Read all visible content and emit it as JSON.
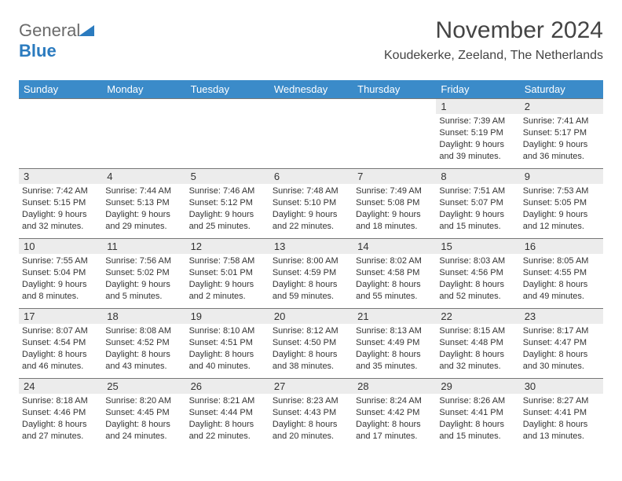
{
  "logo": {
    "text1": "General",
    "text2": "Blue",
    "accent_color": "#2b7bbf"
  },
  "header": {
    "title": "November 2024",
    "location": "Koudekerke, Zeeland, The Netherlands"
  },
  "colors": {
    "header_bg": "#3b8bc9",
    "daynum_bg": "#ececec",
    "grid_border": "#777777"
  },
  "days_of_week": [
    "Sunday",
    "Monday",
    "Tuesday",
    "Wednesday",
    "Thursday",
    "Friday",
    "Saturday"
  ],
  "weeks": [
    [
      {
        "n": "",
        "sr": "",
        "ss": "",
        "dl": ""
      },
      {
        "n": "",
        "sr": "",
        "ss": "",
        "dl": ""
      },
      {
        "n": "",
        "sr": "",
        "ss": "",
        "dl": ""
      },
      {
        "n": "",
        "sr": "",
        "ss": "",
        "dl": ""
      },
      {
        "n": "",
        "sr": "",
        "ss": "",
        "dl": ""
      },
      {
        "n": "1",
        "sr": "Sunrise: 7:39 AM",
        "ss": "Sunset: 5:19 PM",
        "dl": "Daylight: 9 hours and 39 minutes."
      },
      {
        "n": "2",
        "sr": "Sunrise: 7:41 AM",
        "ss": "Sunset: 5:17 PM",
        "dl": "Daylight: 9 hours and 36 minutes."
      }
    ],
    [
      {
        "n": "3",
        "sr": "Sunrise: 7:42 AM",
        "ss": "Sunset: 5:15 PM",
        "dl": "Daylight: 9 hours and 32 minutes."
      },
      {
        "n": "4",
        "sr": "Sunrise: 7:44 AM",
        "ss": "Sunset: 5:13 PM",
        "dl": "Daylight: 9 hours and 29 minutes."
      },
      {
        "n": "5",
        "sr": "Sunrise: 7:46 AM",
        "ss": "Sunset: 5:12 PM",
        "dl": "Daylight: 9 hours and 25 minutes."
      },
      {
        "n": "6",
        "sr": "Sunrise: 7:48 AM",
        "ss": "Sunset: 5:10 PM",
        "dl": "Daylight: 9 hours and 22 minutes."
      },
      {
        "n": "7",
        "sr": "Sunrise: 7:49 AM",
        "ss": "Sunset: 5:08 PM",
        "dl": "Daylight: 9 hours and 18 minutes."
      },
      {
        "n": "8",
        "sr": "Sunrise: 7:51 AM",
        "ss": "Sunset: 5:07 PM",
        "dl": "Daylight: 9 hours and 15 minutes."
      },
      {
        "n": "9",
        "sr": "Sunrise: 7:53 AM",
        "ss": "Sunset: 5:05 PM",
        "dl": "Daylight: 9 hours and 12 minutes."
      }
    ],
    [
      {
        "n": "10",
        "sr": "Sunrise: 7:55 AM",
        "ss": "Sunset: 5:04 PM",
        "dl": "Daylight: 9 hours and 8 minutes."
      },
      {
        "n": "11",
        "sr": "Sunrise: 7:56 AM",
        "ss": "Sunset: 5:02 PM",
        "dl": "Daylight: 9 hours and 5 minutes."
      },
      {
        "n": "12",
        "sr": "Sunrise: 7:58 AM",
        "ss": "Sunset: 5:01 PM",
        "dl": "Daylight: 9 hours and 2 minutes."
      },
      {
        "n": "13",
        "sr": "Sunrise: 8:00 AM",
        "ss": "Sunset: 4:59 PM",
        "dl": "Daylight: 8 hours and 59 minutes."
      },
      {
        "n": "14",
        "sr": "Sunrise: 8:02 AM",
        "ss": "Sunset: 4:58 PM",
        "dl": "Daylight: 8 hours and 55 minutes."
      },
      {
        "n": "15",
        "sr": "Sunrise: 8:03 AM",
        "ss": "Sunset: 4:56 PM",
        "dl": "Daylight: 8 hours and 52 minutes."
      },
      {
        "n": "16",
        "sr": "Sunrise: 8:05 AM",
        "ss": "Sunset: 4:55 PM",
        "dl": "Daylight: 8 hours and 49 minutes."
      }
    ],
    [
      {
        "n": "17",
        "sr": "Sunrise: 8:07 AM",
        "ss": "Sunset: 4:54 PM",
        "dl": "Daylight: 8 hours and 46 minutes."
      },
      {
        "n": "18",
        "sr": "Sunrise: 8:08 AM",
        "ss": "Sunset: 4:52 PM",
        "dl": "Daylight: 8 hours and 43 minutes."
      },
      {
        "n": "19",
        "sr": "Sunrise: 8:10 AM",
        "ss": "Sunset: 4:51 PM",
        "dl": "Daylight: 8 hours and 40 minutes."
      },
      {
        "n": "20",
        "sr": "Sunrise: 8:12 AM",
        "ss": "Sunset: 4:50 PM",
        "dl": "Daylight: 8 hours and 38 minutes."
      },
      {
        "n": "21",
        "sr": "Sunrise: 8:13 AM",
        "ss": "Sunset: 4:49 PM",
        "dl": "Daylight: 8 hours and 35 minutes."
      },
      {
        "n": "22",
        "sr": "Sunrise: 8:15 AM",
        "ss": "Sunset: 4:48 PM",
        "dl": "Daylight: 8 hours and 32 minutes."
      },
      {
        "n": "23",
        "sr": "Sunrise: 8:17 AM",
        "ss": "Sunset: 4:47 PM",
        "dl": "Daylight: 8 hours and 30 minutes."
      }
    ],
    [
      {
        "n": "24",
        "sr": "Sunrise: 8:18 AM",
        "ss": "Sunset: 4:46 PM",
        "dl": "Daylight: 8 hours and 27 minutes."
      },
      {
        "n": "25",
        "sr": "Sunrise: 8:20 AM",
        "ss": "Sunset: 4:45 PM",
        "dl": "Daylight: 8 hours and 24 minutes."
      },
      {
        "n": "26",
        "sr": "Sunrise: 8:21 AM",
        "ss": "Sunset: 4:44 PM",
        "dl": "Daylight: 8 hours and 22 minutes."
      },
      {
        "n": "27",
        "sr": "Sunrise: 8:23 AM",
        "ss": "Sunset: 4:43 PM",
        "dl": "Daylight: 8 hours and 20 minutes."
      },
      {
        "n": "28",
        "sr": "Sunrise: 8:24 AM",
        "ss": "Sunset: 4:42 PM",
        "dl": "Daylight: 8 hours and 17 minutes."
      },
      {
        "n": "29",
        "sr": "Sunrise: 8:26 AM",
        "ss": "Sunset: 4:41 PM",
        "dl": "Daylight: 8 hours and 15 minutes."
      },
      {
        "n": "30",
        "sr": "Sunrise: 8:27 AM",
        "ss": "Sunset: 4:41 PM",
        "dl": "Daylight: 8 hours and 13 minutes."
      }
    ]
  ]
}
